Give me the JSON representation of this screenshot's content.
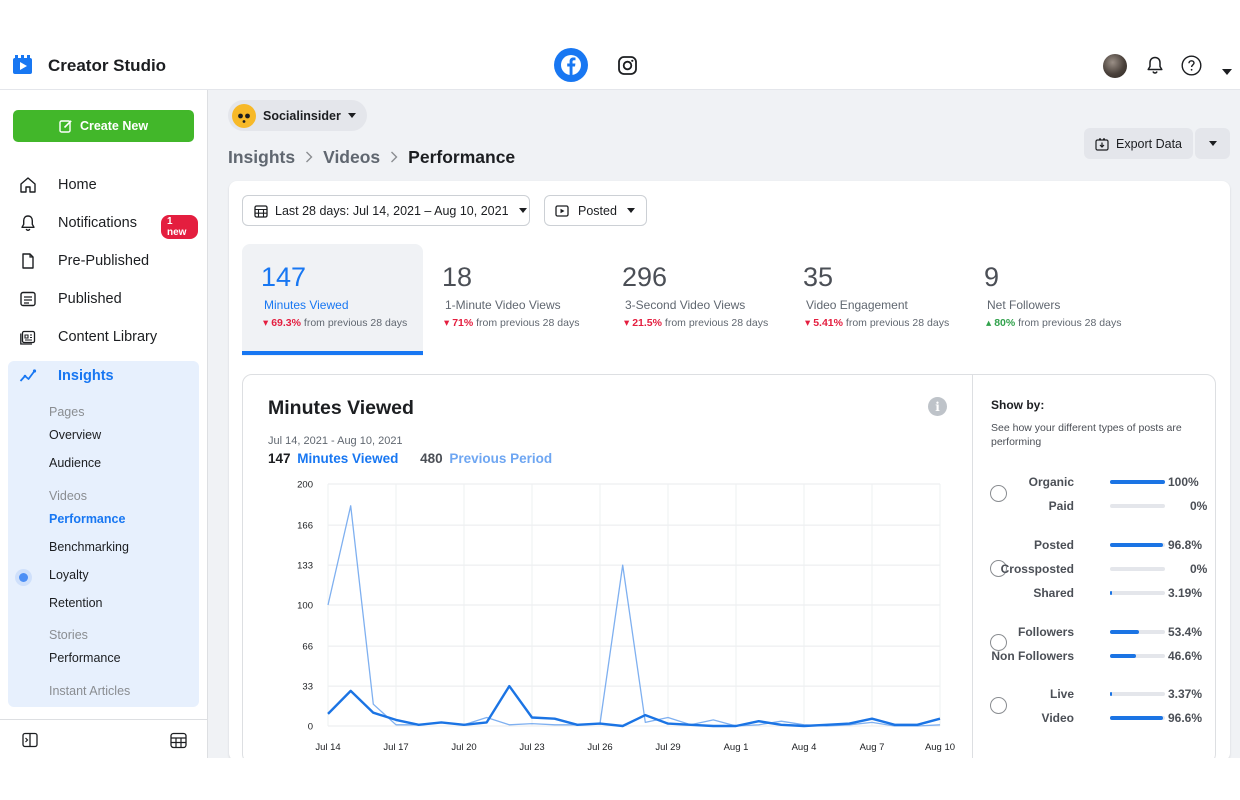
{
  "app": {
    "title": "Creator Studio"
  },
  "header": {
    "platforms": [
      "facebook-icon",
      "instagram-icon"
    ],
    "actions": [
      "avatar",
      "bell-icon",
      "help-icon",
      "caret-down-icon"
    ]
  },
  "sidebar": {
    "create_label": "Create New",
    "notif_badge": "1 new",
    "items": [
      {
        "label": "Home",
        "icon": "home-icon"
      },
      {
        "label": "Notifications",
        "icon": "bell-icon"
      },
      {
        "label": "Pre-Published",
        "icon": "document-icon"
      },
      {
        "label": "Published",
        "icon": "published-icon"
      },
      {
        "label": "Content Library",
        "icon": "library-icon"
      },
      {
        "label": "Insights",
        "icon": "insights-icon"
      }
    ],
    "sub": {
      "pages_group": "Pages",
      "overview": "Overview",
      "audience": "Audience",
      "videos_group": "Videos",
      "performance": "Performance",
      "benchmarking": "Benchmarking",
      "loyalty": "Loyalty",
      "retention": "Retention",
      "stories_group": "Stories",
      "stories_performance": "Performance",
      "instant_articles": "Instant Articles"
    }
  },
  "page_selector": {
    "name": "Socialinsider"
  },
  "breadcrumb": {
    "level1": "Insights",
    "level2": "Videos",
    "current": "Performance"
  },
  "export": {
    "label": "Export Data"
  },
  "filters": {
    "date_range": "Last 28 days: Jul 14, 2021 – Aug 10, 2021",
    "post_state": "Posted"
  },
  "metrics": [
    {
      "value": "147",
      "label": "Minutes Viewed",
      "change": "69.3%",
      "direction": "down",
      "suffix": "from previous 28 days"
    },
    {
      "value": "18",
      "label": "1-Minute Video Views",
      "change": "71%",
      "direction": "down",
      "suffix": "from previous 28 days"
    },
    {
      "value": "296",
      "label": "3-Second Video Views",
      "change": "21.5%",
      "direction": "down",
      "suffix": "from previous 28 days"
    },
    {
      "value": "35",
      "label": "Video Engagement",
      "change": "5.41%",
      "direction": "down",
      "suffix": "from previous 28 days"
    },
    {
      "value": "9",
      "label": "Net Followers",
      "change": "80%",
      "direction": "up",
      "suffix": "from previous 28 days"
    }
  ],
  "chart": {
    "title": "Minutes Viewed",
    "date_range": "Jul 14, 2021 - Aug 10, 2021",
    "current_total": "147",
    "current_label": "Minutes Viewed",
    "previous_total": "480",
    "previous_label": "Previous Period"
  },
  "show_by": {
    "title": "Show by:",
    "description": "See how your different types of posts are performing",
    "groups": [
      {
        "rows": [
          {
            "name": "Organic",
            "pct": "100%",
            "value": 100
          },
          {
            "name": "Paid",
            "pct": "0%",
            "value": 0
          }
        ]
      },
      {
        "rows": [
          {
            "name": "Posted",
            "pct": "96.8%",
            "value": 96.8
          },
          {
            "name": "Crossposted",
            "pct": "0%",
            "value": 0
          },
          {
            "name": "Shared",
            "pct": "3.19%",
            "value": 3.19
          }
        ]
      },
      {
        "rows": [
          {
            "name": "Followers",
            "pct": "53.4%",
            "value": 53.4
          },
          {
            "name": "Non Followers",
            "pct": "46.6%",
            "value": 46.6
          }
        ]
      },
      {
        "rows": [
          {
            "name": "Live",
            "pct": "3.37%",
            "value": 3.37
          },
          {
            "name": "Video",
            "pct": "96.6%",
            "value": 96.6
          }
        ]
      }
    ]
  },
  "colors": {
    "accent": "#1877f2",
    "current_line": "#1b74e4",
    "previous_line": "#7fb0f0",
    "create_button": "#42b72a",
    "badge": "#e41e3f",
    "down": "#e41e3f",
    "up": "#31a24c"
  },
  "chart_data": {
    "type": "line",
    "ylim": [
      0,
      200
    ],
    "y_ticks": [
      "0",
      "33",
      "66",
      "100",
      "133",
      "166",
      "200"
    ],
    "x_tick_labels": [
      "Jul 14",
      "Jul 17",
      "Jul 20",
      "Jul 23",
      "Jul 26",
      "Jul 29",
      "Aug 1",
      "Aug 4",
      "Aug 7",
      "Aug 10"
    ],
    "x": [
      "Jul 14",
      "Jul 15",
      "Jul 16",
      "Jul 17",
      "Jul 18",
      "Jul 19",
      "Jul 20",
      "Jul 21",
      "Jul 22",
      "Jul 23",
      "Jul 24",
      "Jul 25",
      "Jul 26",
      "Jul 27",
      "Jul 28",
      "Jul 29",
      "Jul 30",
      "Jul 31",
      "Aug 1",
      "Aug 2",
      "Aug 3",
      "Aug 4",
      "Aug 5",
      "Aug 6",
      "Aug 7",
      "Aug 8",
      "Aug 9",
      "Aug 10"
    ],
    "series": [
      {
        "name": "Minutes Viewed",
        "values": [
          10,
          29,
          11,
          5,
          1,
          3,
          1,
          3,
          33,
          7,
          6,
          1,
          2,
          0,
          9,
          2,
          1,
          0,
          0,
          4,
          1,
          0,
          1,
          2,
          6,
          1,
          1,
          6
        ]
      },
      {
        "name": "Previous Period",
        "values": [
          100,
          182,
          18,
          1,
          1,
          3,
          1,
          7,
          1,
          2,
          1,
          1,
          2,
          133,
          3,
          7,
          1,
          5,
          0,
          1,
          4,
          1,
          0,
          1,
          3,
          0,
          0,
          1
        ]
      }
    ]
  }
}
